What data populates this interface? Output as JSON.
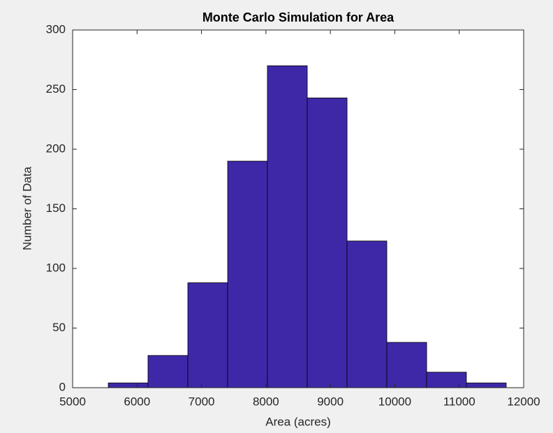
{
  "chart_data": {
    "type": "histogram",
    "title": "Monte Carlo Simulation for Area",
    "x_label": "Area (acres)",
    "y_label": "Number of Data",
    "bins": [
      5553,
      6170,
      6788,
      7406,
      8023,
      8641,
      9259,
      9876,
      10494,
      11111,
      11729
    ],
    "counts": [
      4,
      27,
      88,
      190,
      270,
      243,
      123,
      38,
      13,
      4
    ],
    "color": "#3f28a8",
    "xlim": [
      5000,
      12000
    ],
    "xticks": [
      5000,
      6000,
      7000,
      8000,
      9000,
      10000,
      11000,
      12000
    ],
    "ylim": [
      0,
      300
    ],
    "yticks": [
      0,
      50,
      100,
      150,
      200,
      250,
      300
    ]
  }
}
